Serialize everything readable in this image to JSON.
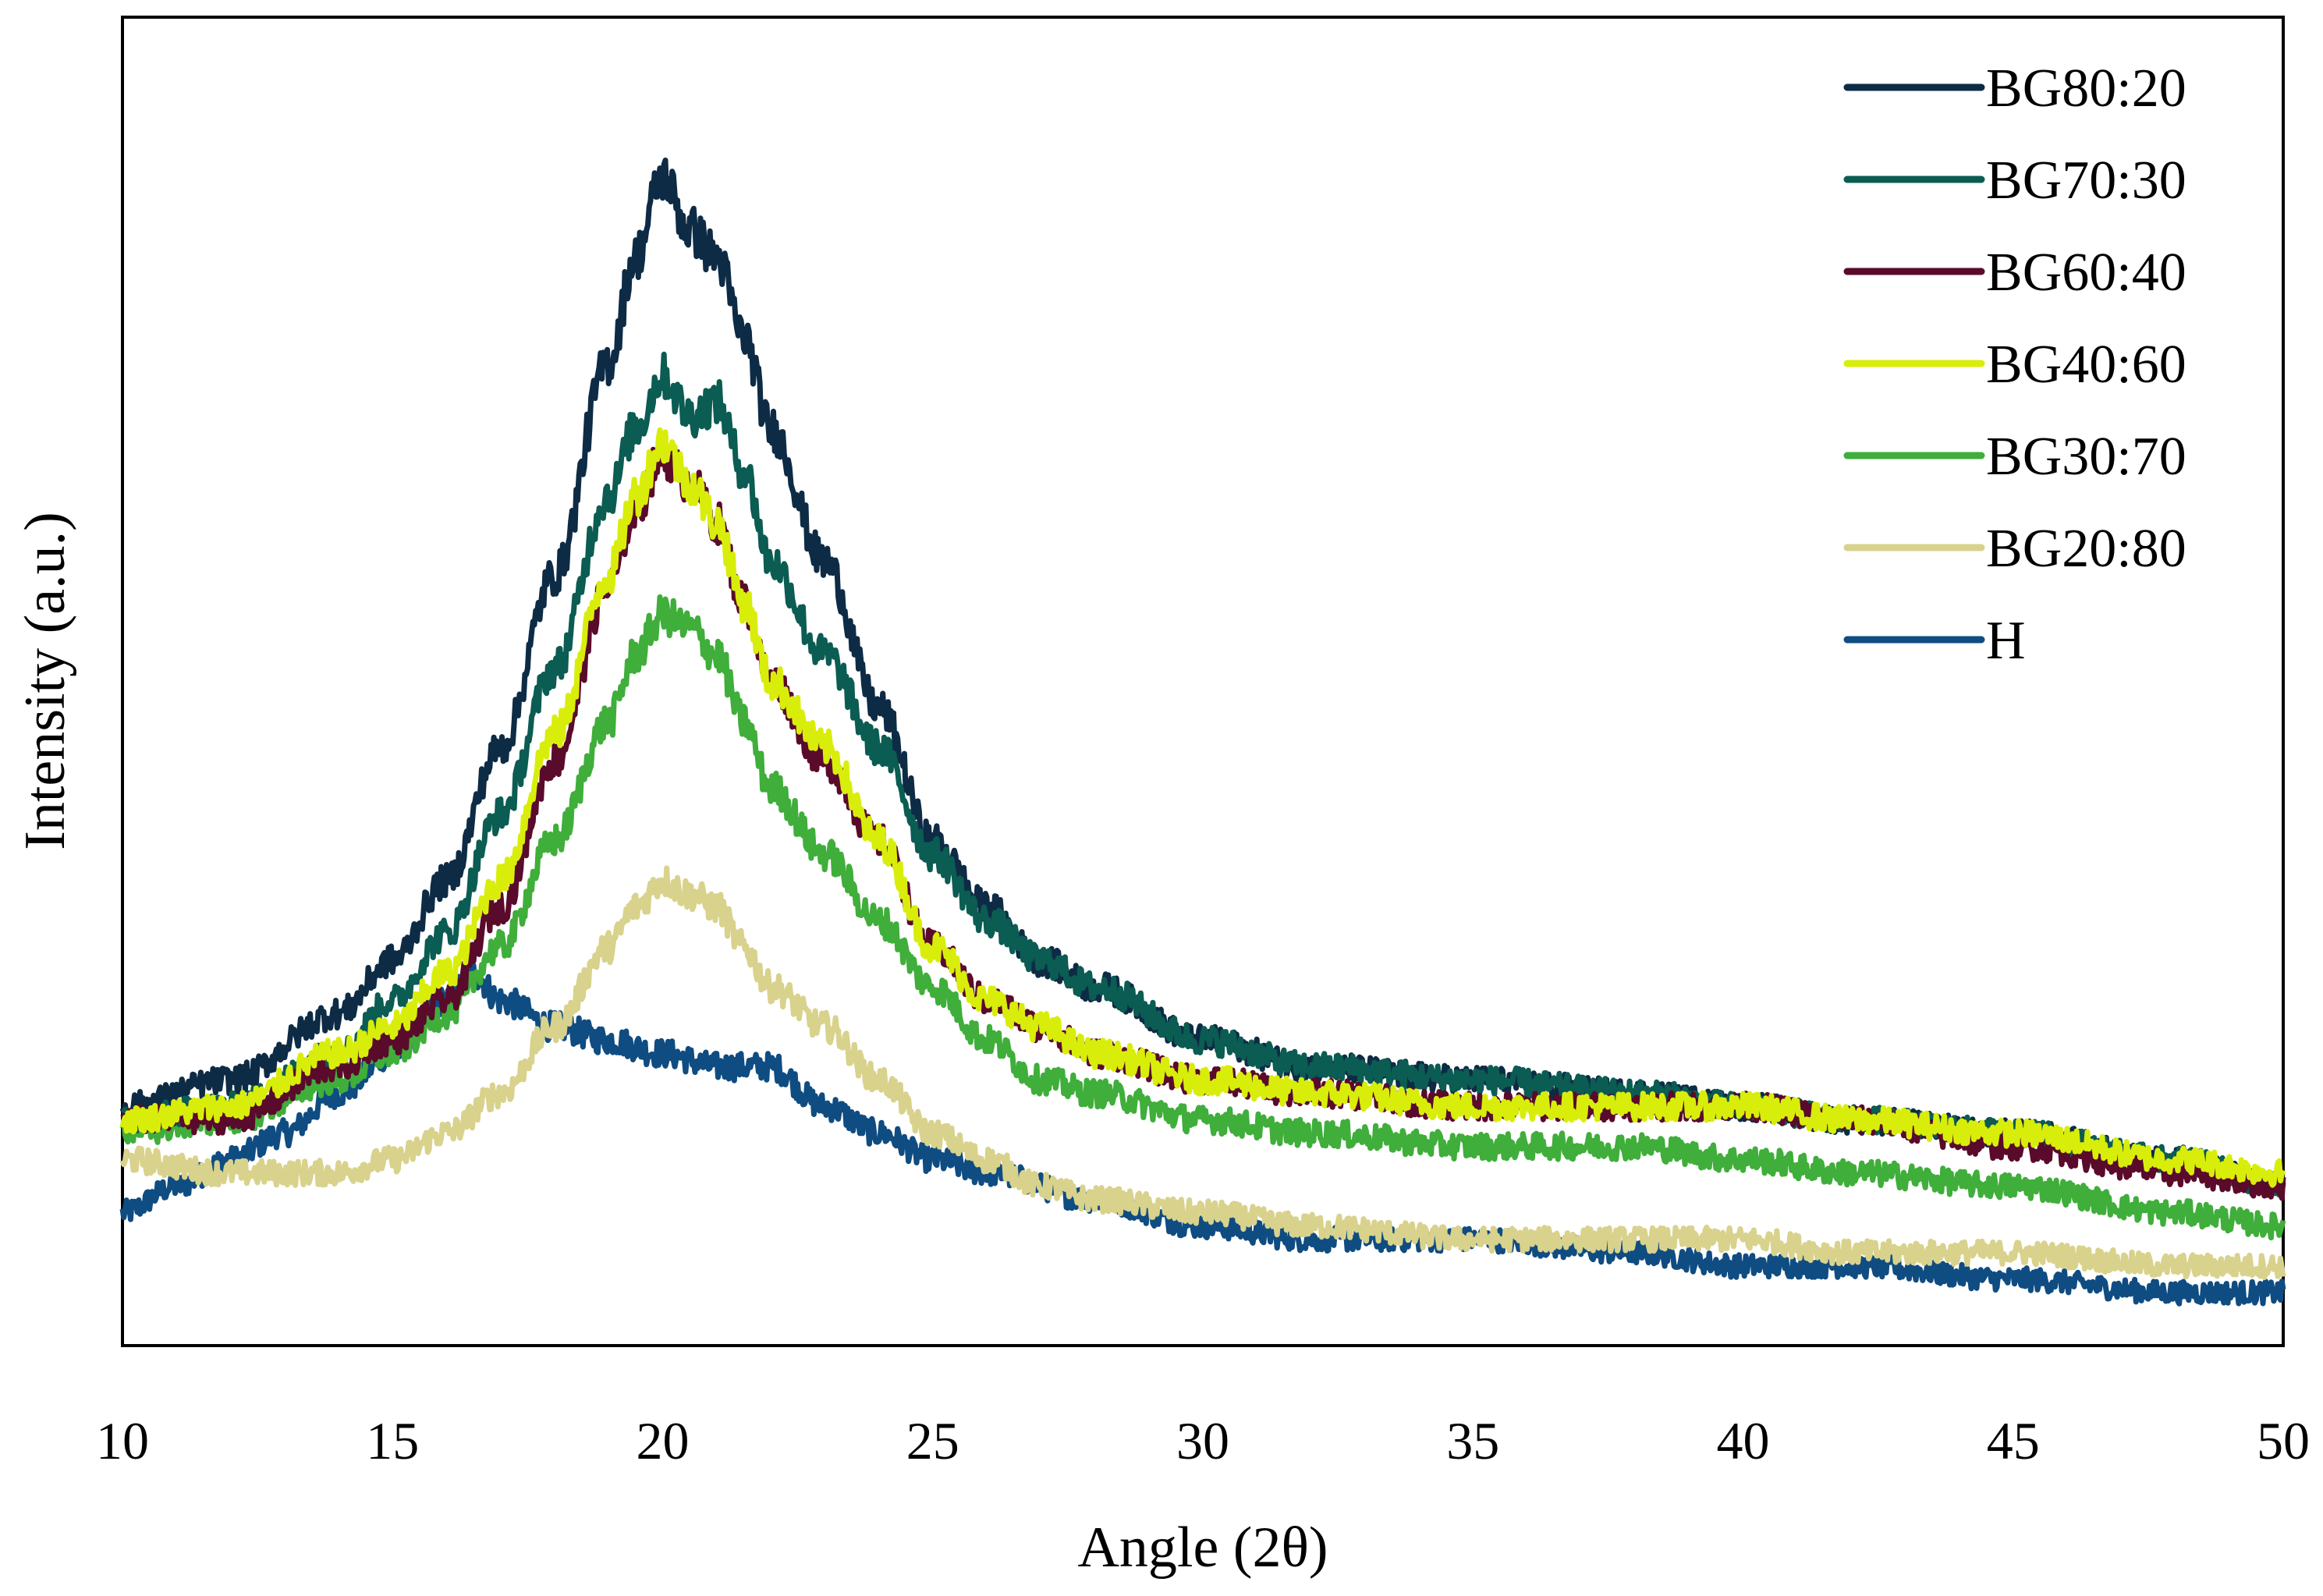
{
  "chart_data": {
    "type": "line",
    "title": "",
    "xlabel": "Angle (2θ)",
    "ylabel": "Intensity (a.u.)",
    "xlim": [
      10,
      50
    ],
    "ylim": [
      0,
      100
    ],
    "xticks": [
      10,
      15,
      20,
      25,
      30,
      35,
      40,
      45,
      50
    ],
    "yticks_shown": false,
    "grid": false,
    "legend_position": "top-right",
    "series": [
      {
        "name": "BG80:20",
        "color": "#0d2b45",
        "x": [
          10,
          12,
          14,
          15,
          16,
          17,
          18,
          19,
          19.5,
          20,
          20.5,
          21,
          21.5,
          22,
          23,
          24,
          25,
          26,
          27,
          28,
          30,
          32,
          35,
          38,
          40,
          42,
          45,
          48,
          50
        ],
        "y": [
          18,
          20,
          25,
          29,
          35,
          45,
          58,
          74,
          82,
          88,
          84,
          82,
          76,
          69,
          59,
          48,
          38,
          33,
          29,
          27,
          23,
          21,
          20,
          19,
          18,
          17,
          16,
          14,
          12
        ]
      },
      {
        "name": "BG70:30",
        "color": "#0b5c52",
        "x": [
          10,
          12,
          14,
          15,
          16,
          17,
          18,
          19,
          19.5,
          20,
          20.5,
          21,
          21.5,
          22,
          23,
          24,
          25,
          26,
          27,
          28,
          30,
          32,
          35,
          38,
          40,
          42,
          45,
          48,
          50
        ],
        "y": [
          17,
          18,
          22,
          26,
          31,
          40,
          51,
          64,
          69,
          73,
          70,
          71,
          66,
          59,
          52,
          45,
          37,
          32,
          29,
          27,
          23,
          21,
          20,
          19,
          18,
          17,
          16,
          14,
          12
        ]
      },
      {
        "name": "BG60:40",
        "color": "#5a0a2a",
        "x": [
          10,
          12,
          14,
          15,
          16,
          17,
          18,
          19,
          19.5,
          20,
          20.5,
          21,
          21.5,
          22,
          23,
          24,
          25,
          26,
          27,
          28,
          30,
          32,
          35,
          38,
          40,
          42,
          45,
          48,
          50
        ],
        "y": [
          17,
          17,
          21,
          23,
          26,
          33,
          44,
          57,
          63,
          67,
          65,
          62,
          56,
          50,
          44,
          38,
          30,
          26,
          24,
          22,
          20,
          19,
          18,
          18,
          18,
          17,
          15,
          13,
          12
        ]
      },
      {
        "name": "BG40:60",
        "color": "#d8ee0a",
        "x": [
          10,
          12,
          14,
          15,
          16,
          17,
          18,
          19,
          19.5,
          20,
          20.5,
          21,
          21.5,
          22,
          23,
          24,
          25,
          26,
          27,
          28,
          30,
          32,
          35,
          38,
          40,
          42,
          45,
          48,
          50
        ],
        "y": [
          17,
          18,
          22,
          24,
          28,
          35,
          46,
          58,
          64,
          68,
          65,
          62,
          56,
          50,
          45,
          38,
          30,
          26,
          24,
          22,
          20,
          19,
          18,
          18,
          18,
          17,
          16,
          14,
          13
        ]
      },
      {
        "name": "BG30:70",
        "color": "#3fae3a",
        "x": [
          10,
          12,
          14,
          15,
          16,
          17,
          18,
          19,
          19.5,
          20,
          20.5,
          21,
          21.5,
          22,
          23,
          24,
          25,
          26,
          27,
          28,
          30,
          32,
          35,
          38,
          40,
          42,
          45,
          48,
          50
        ],
        "y": [
          16,
          17,
          20,
          22,
          25,
          30,
          38,
          47,
          52,
          55,
          54,
          52,
          47,
          42,
          37,
          32,
          27,
          23,
          20,
          19,
          17,
          16,
          15,
          15,
          14,
          13,
          12,
          10,
          9
        ]
      },
      {
        "name": "BG20:80",
        "color": "#d8d28c",
        "x": [
          10,
          12,
          14,
          15,
          16,
          17,
          18,
          19,
          19.5,
          20,
          20.5,
          21,
          21.5,
          22,
          23,
          24,
          25,
          26,
          27,
          28,
          30,
          32,
          35,
          38,
          40,
          42,
          45,
          48,
          50
        ],
        "y": [
          14,
          13,
          13,
          14,
          16,
          19,
          24,
          30,
          33,
          35,
          34,
          33,
          30,
          27,
          24,
          20,
          16,
          14,
          12,
          11,
          10,
          9,
          8,
          8,
          8,
          7,
          7,
          6,
          6
        ]
      },
      {
        "name": "H",
        "color": "#0f4c81",
        "x": [
          10,
          11,
          12,
          13,
          14,
          15,
          16,
          16.5,
          17,
          18,
          19,
          20,
          21,
          22,
          23,
          24,
          25,
          26,
          28,
          30,
          32,
          35,
          38,
          40,
          42,
          45,
          48,
          50
        ],
        "y": [
          10,
          12,
          14,
          16,
          19,
          22,
          26,
          28,
          26,
          24,
          23,
          22,
          21,
          21,
          18,
          16,
          14,
          13,
          11,
          9,
          8,
          8,
          7,
          6,
          6,
          5,
          4,
          4
        ]
      }
    ]
  }
}
